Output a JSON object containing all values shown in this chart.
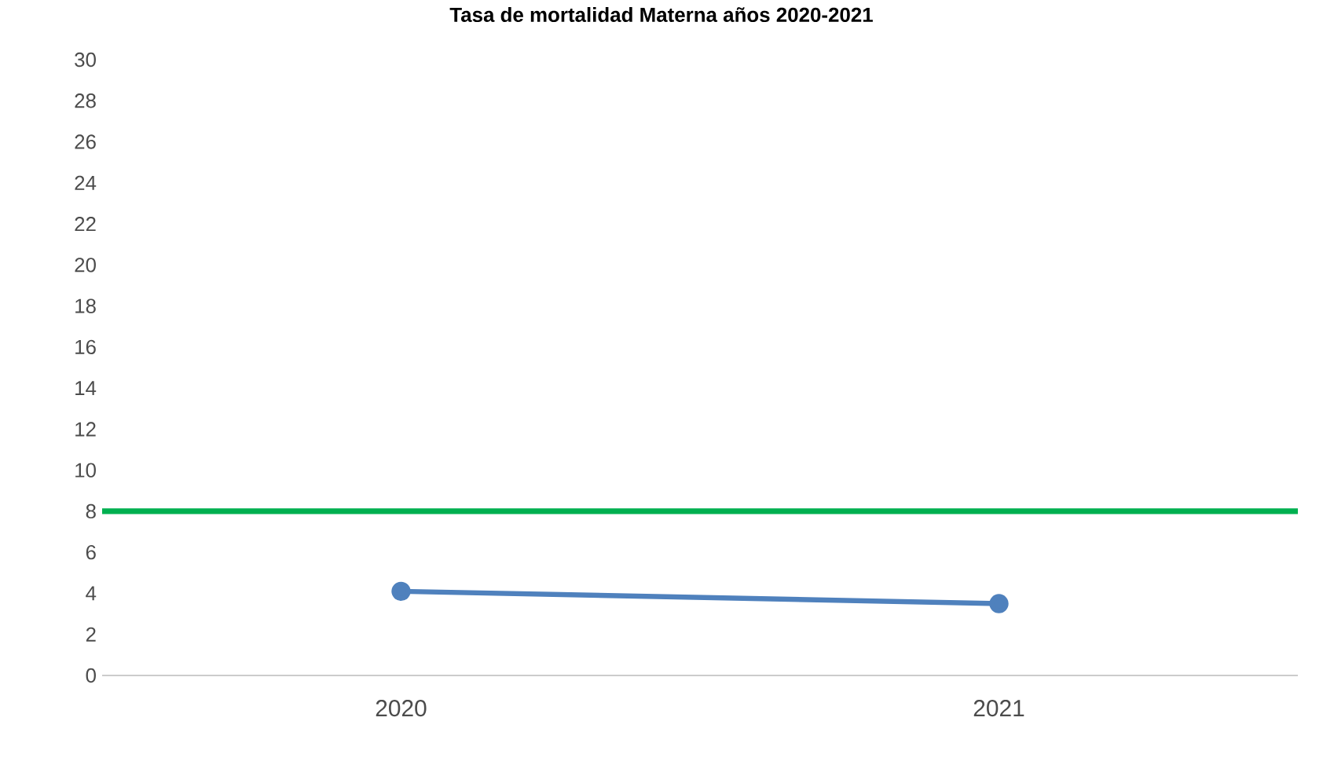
{
  "chart_data": {
    "type": "line",
    "title": "Tasa de mortalidad Materna años 2020-2021",
    "categories": [
      "2020",
      "2021"
    ],
    "series": [
      {
        "color": "#4f81bd",
        "values": [
          4.1,
          3.5
        ]
      }
    ],
    "marker": "circle",
    "ylim": [
      0,
      30
    ],
    "yticks": [
      0,
      2,
      4,
      6,
      8,
      10,
      12,
      14,
      16,
      18,
      20,
      22,
      24,
      26,
      28,
      30
    ],
    "ref_lines": [
      {
        "axis": "y",
        "value": 8,
        "color": "#00b050"
      }
    ]
  }
}
